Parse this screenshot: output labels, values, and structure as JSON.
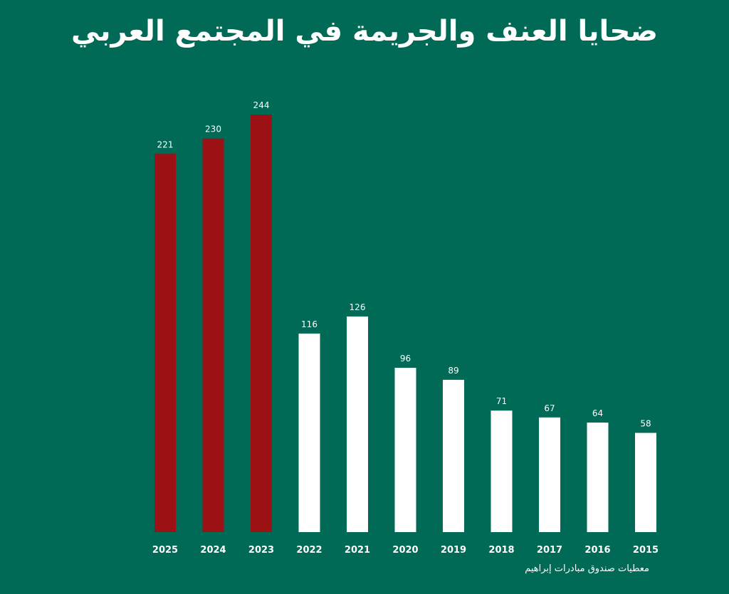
{
  "chart_data": {
    "type": "bar",
    "title": "ضحايا العنف والجريمة في المجتمع العربي",
    "categories": [
      "2025",
      "2024",
      "2023",
      "2022",
      "2021",
      "2020",
      "2019",
      "2018",
      "2017",
      "2016",
      "2015"
    ],
    "values": [
      221,
      230,
      244,
      116,
      126,
      96,
      89,
      71,
      67,
      64,
      58
    ],
    "bar_colors": [
      "#9b1114",
      "#9b1114",
      "#9b1114",
      "#ffffff",
      "#ffffff",
      "#ffffff",
      "#ffffff",
      "#ffffff",
      "#ffffff",
      "#ffffff",
      "#ffffff"
    ],
    "ylim": [
      0,
      244
    ],
    "grid": false,
    "source": "معطيات صندوق مبادرات إبراهيم"
  },
  "colors": {
    "background": "#006a56",
    "highlight": "#9b1114",
    "default_bar": "#ffffff",
    "text": "#ffffff"
  }
}
